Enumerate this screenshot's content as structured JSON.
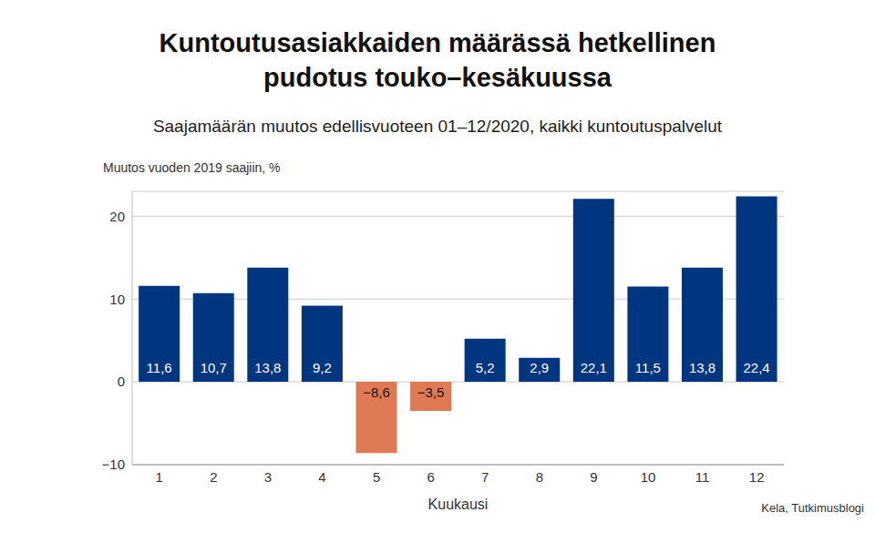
{
  "chart_data": {
    "type": "bar",
    "title": "Kuntoutusasiakkaiden määrässä hetkellinen pudotus touko–kesäkuussa",
    "subtitle": "Saajamäärän muutos edellisvuoteen 01–12/2020, kaikki kuntoutuspalvelut",
    "y_label": "Muutos vuoden 2019 saajiin, %",
    "x_label": "Kuukausi",
    "source": "Kela, Tutkimusblogi",
    "categories": [
      "1",
      "2",
      "3",
      "4",
      "5",
      "6",
      "7",
      "8",
      "9",
      "10",
      "11",
      "12"
    ],
    "values": [
      11.6,
      10.7,
      13.8,
      9.2,
      -8.6,
      -3.5,
      5.2,
      2.9,
      22.1,
      11.5,
      13.8,
      22.4
    ],
    "value_labels": [
      "11,6",
      "10,7",
      "13,8",
      "9,2",
      "−8,6",
      "−3,5",
      "5,2",
      "2,9",
      "22,1",
      "11,5",
      "13,8",
      "22,4"
    ],
    "colors": [
      "#003580",
      "#003580",
      "#003580",
      "#003580",
      "#e07a54",
      "#e07a54",
      "#003580",
      "#003580",
      "#003580",
      "#003580",
      "#003580",
      "#003580"
    ],
    "ylim": [
      -10,
      23
    ],
    "yticks": [
      {
        "value": -10,
        "label": "−10"
      },
      0,
      10,
      20
    ],
    "grid": true,
    "data_labels": true
  }
}
